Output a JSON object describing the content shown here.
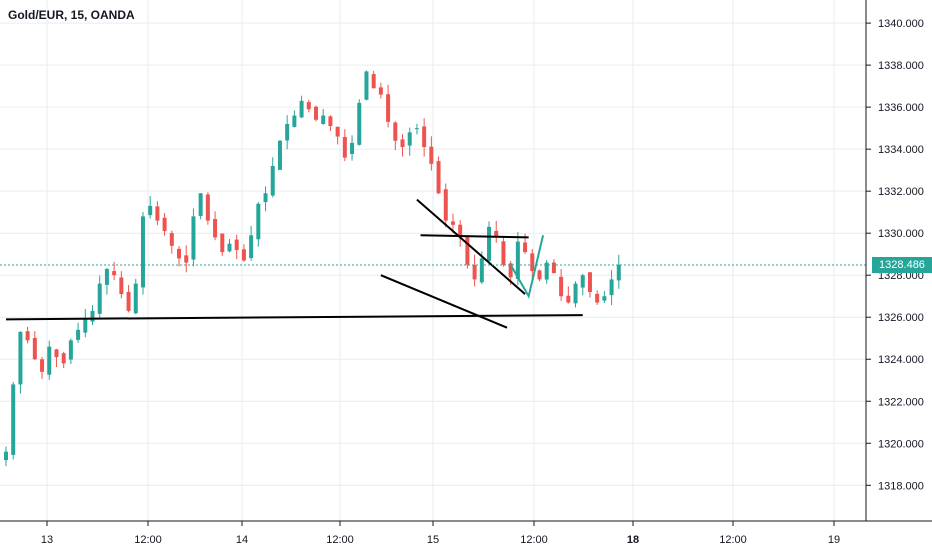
{
  "header": {
    "symbol_title": "Gold/EUR, 15, OANDA"
  },
  "colors": {
    "up": "#26a69a",
    "down": "#ef5350",
    "grid": "#e6eef0",
    "line": "#000000",
    "last_price": "#26a69a"
  },
  "chart_data": {
    "type": "candlestick",
    "y_ticks": [
      "1318.000",
      "1320.000",
      "1322.000",
      "1324.000",
      "1326.000",
      "1328.000",
      "1330.000",
      "1332.000",
      "1334.000",
      "1336.000",
      "1338.000",
      "1340.000"
    ],
    "x_ticks": [
      "13",
      "12:00",
      "14",
      "12:00",
      "15",
      "12:00",
      "18",
      "12:00",
      "19"
    ],
    "ylim": [
      1316.3,
      1341.1
    ],
    "last_price": "1328.486",
    "last_price_value": 1328.486,
    "series_close_path": [
      1319.6,
      1322.8,
      1325.3,
      1324.9,
      1324.0,
      1323.4,
      1324.6,
      1324.1,
      1323.8,
      1324.9,
      1325.4,
      1325.9,
      1326.3,
      1327.6,
      1328.3,
      1328.0,
      1327.1,
      1326.3,
      1327.6,
      1330.8,
      1331.3,
      1330.6,
      1330.1,
      1329.4,
      1328.8,
      1328.6,
      1330.8,
      1331.9,
      1330.6,
      1329.8,
      1329.1,
      1329.5,
      1329.2,
      1328.7,
      1329.9,
      1331.4,
      1331.9,
      1333.2,
      1334.4,
      1335.2,
      1335.6,
      1336.3,
      1335.9,
      1335.4,
      1335.6,
      1335.1,
      1334.6,
      1333.6,
      1334.3,
      1336.2,
      1337.7,
      1336.9,
      1336.6,
      1335.3,
      1334.4,
      1334.1,
      1334.8,
      1335.0,
      1334.1,
      1333.3,
      1331.9,
      1330.6,
      1330.4,
      1329.8,
      1328.5,
      1327.8,
      1328.8,
      1330.3,
      1329.8,
      1328.5,
      1327.9,
      1329.6,
      1329.1,
      1328.2,
      1327.8,
      1328.6,
      1328.1,
      1327.0,
      1326.7,
      1327.6,
      1328.0,
      1327.2,
      1326.7,
      1327.0,
      1327.8,
      1328.5
    ],
    "trendlines": [
      {
        "from": [
          0.0,
          1325.9
        ],
        "to": [
          80.0,
          1326.1
        ]
      },
      {
        "from": [
          57.0,
          1331.6
        ],
        "to": [
          72.0,
          1327.1
        ]
      },
      {
        "from": [
          52.0,
          1328.0
        ],
        "to": [
          69.5,
          1325.5
        ]
      },
      {
        "from": [
          57.5,
          1329.9
        ],
        "to": [
          72.5,
          1329.8
        ]
      }
    ],
    "projection": [
      [
        70.0,
        1328.5
      ],
      [
        72.5,
        1327.0
      ],
      [
        74.5,
        1329.9
      ]
    ],
    "grid": true
  }
}
